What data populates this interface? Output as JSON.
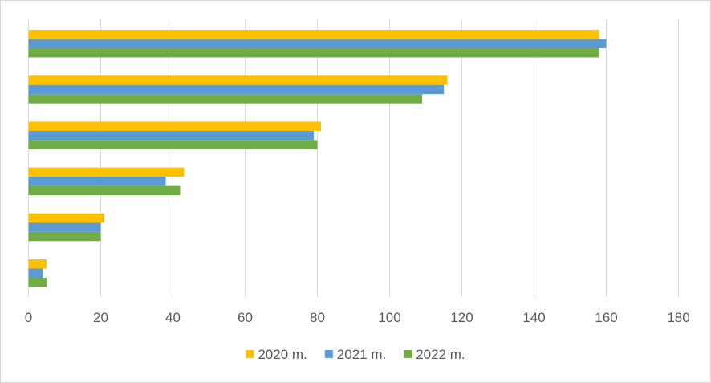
{
  "chart_data": {
    "type": "bar",
    "orientation": "horizontal",
    "title": "",
    "xlabel": "",
    "ylabel": "",
    "xlim": [
      0,
      180
    ],
    "x_ticks": [
      0,
      20,
      40,
      60,
      80,
      100,
      120,
      140,
      160,
      180
    ],
    "grid": "vertical",
    "legend_position": "bottom",
    "categories": [
      "",
      "",
      "",
      "",
      "",
      ""
    ],
    "series": [
      {
        "name": "2020 m.",
        "color": "#FFC000",
        "values": [
          158,
          116,
          81,
          43,
          21,
          5
        ]
      },
      {
        "name": "2021 m.",
        "color": "#5B9BD5",
        "values": [
          160,
          115,
          79,
          38,
          20,
          4
        ]
      },
      {
        "name": "2022 m.",
        "color": "#70AD47",
        "values": [
          158,
          109,
          80,
          42,
          20,
          5
        ]
      }
    ]
  }
}
